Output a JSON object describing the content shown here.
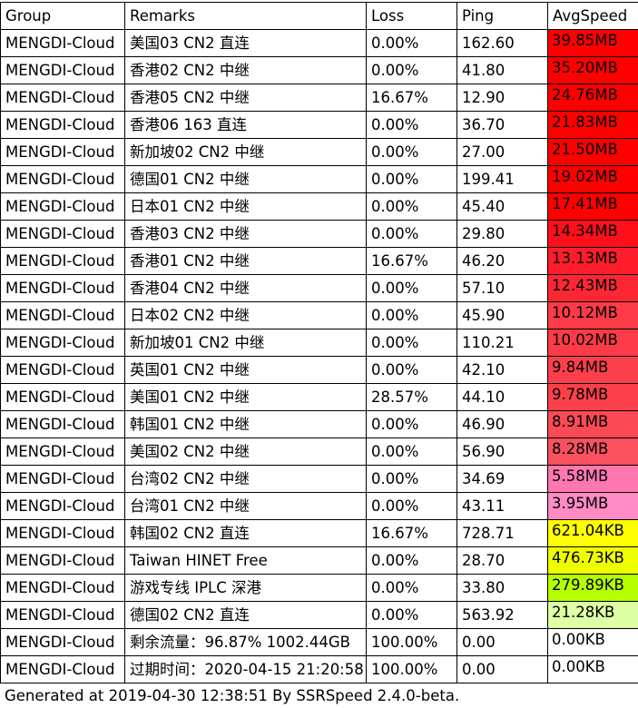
{
  "chart_data": {
    "type": "table",
    "columns": [
      "Group",
      "Remarks",
      "Loss",
      "Ping",
      "AvgSpeed"
    ],
    "rows": [
      [
        "MENGDI-Cloud",
        "美国03 CN2 直连",
        "0.00%",
        "162.60",
        "39.85MB"
      ],
      [
        "MENGDI-Cloud",
        "香港02 CN2 中继",
        "0.00%",
        "41.80",
        "35.20MB"
      ],
      [
        "MENGDI-Cloud",
        "香港05 CN2 中继",
        "16.67%",
        "12.90",
        "24.76MB"
      ],
      [
        "MENGDI-Cloud",
        "香港06 163 直连",
        "0.00%",
        "36.70",
        "21.83MB"
      ],
      [
        "MENGDI-Cloud",
        "新加坡02 CN2 中继",
        "0.00%",
        "27.00",
        "21.50MB"
      ],
      [
        "MENGDI-Cloud",
        "德国01 CN2 中继",
        "0.00%",
        "199.41",
        "19.02MB"
      ],
      [
        "MENGDI-Cloud",
        "日本01 CN2 中继",
        "0.00%",
        "45.40",
        "17.41MB"
      ],
      [
        "MENGDI-Cloud",
        "香港03 CN2 中继",
        "0.00%",
        "29.80",
        "14.34MB"
      ],
      [
        "MENGDI-Cloud",
        "香港01 CN2 中继",
        "16.67%",
        "46.20",
        "13.13MB"
      ],
      [
        "MENGDI-Cloud",
        "香港04 CN2 中继",
        "0.00%",
        "57.10",
        "12.43MB"
      ],
      [
        "MENGDI-Cloud",
        "日本02 CN2 中继",
        "0.00%",
        "45.90",
        "10.12MB"
      ],
      [
        "MENGDI-Cloud",
        "新加坡01 CN2 中继",
        "0.00%",
        "110.21",
        "10.02MB"
      ],
      [
        "MENGDI-Cloud",
        "英国01 CN2 中继",
        "0.00%",
        "42.10",
        "9.84MB"
      ],
      [
        "MENGDI-Cloud",
        "美国01 CN2 中继",
        "28.57%",
        "44.10",
        "9.78MB"
      ],
      [
        "MENGDI-Cloud",
        "韩国01 CN2 中继",
        "0.00%",
        "46.90",
        "8.91MB"
      ],
      [
        "MENGDI-Cloud",
        "美国02 CN2 中继",
        "0.00%",
        "56.90",
        "8.28MB"
      ],
      [
        "MENGDI-Cloud",
        "台湾02 CN2 中继",
        "0.00%",
        "34.69",
        "5.58MB"
      ],
      [
        "MENGDI-Cloud",
        "台湾01 CN2 中继",
        "0.00%",
        "43.11",
        "3.95MB"
      ],
      [
        "MENGDI-Cloud",
        "韩国02 CN2 直连",
        "16.67%",
        "728.71",
        "621.04KB"
      ],
      [
        "MENGDI-Cloud",
        "Taiwan HINET Free",
        "0.00%",
        "28.70",
        "476.73KB"
      ],
      [
        "MENGDI-Cloud",
        "游戏专线 IPLC 深港",
        "0.00%",
        "33.80",
        "279.89KB"
      ],
      [
        "MENGDI-Cloud",
        "德国02 CN2 直连",
        "0.00%",
        "563.92",
        "21.28KB"
      ],
      [
        "MENGDI-Cloud",
        "剩余流量：96.87% 1002.44GB",
        "100.00%",
        "0.00",
        "0.00KB"
      ],
      [
        "MENGDI-Cloud",
        "过期时间：2020-04-15 21:20:58",
        "100.00%",
        "0.00",
        "0.00KB"
      ]
    ],
    "speed_colors": [
      "#ff0000",
      "#ff0000",
      "#ff0000",
      "#ff0000",
      "#ff0000",
      "#ff0000",
      "#ff0000",
      "#fe0f19",
      "#fe1d2a",
      "#fd2734",
      "#fb3b47",
      "#fb3b47",
      "#fb3f4b",
      "#fb404c",
      "#fa4a56",
      "#f9515e",
      "#ff77b1",
      "#ff8ac4",
      "#ffff00",
      "#eeff00",
      "#b4ff00",
      "#ddffa5",
      "#ffffff",
      "#ffffff"
    ]
  },
  "footer": "Generated at 2019-04-30 12:38:51 By SSRSpeed 2.4.0-beta."
}
